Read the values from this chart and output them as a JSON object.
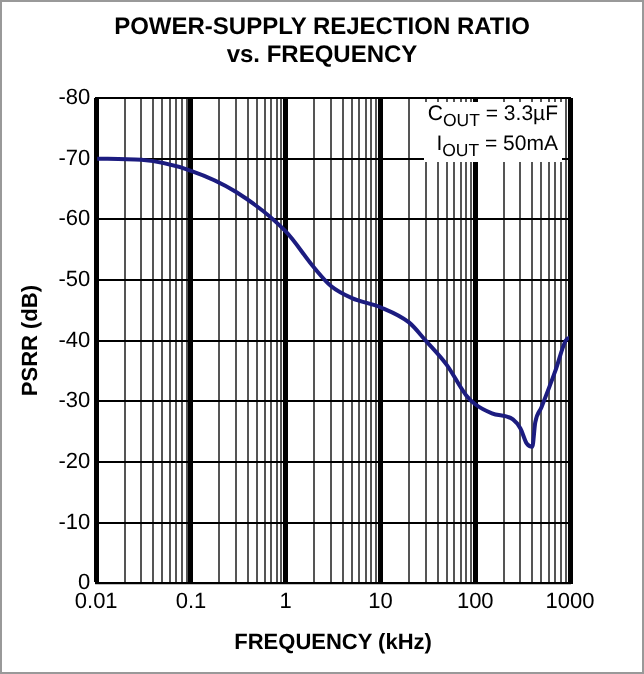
{
  "chart_data": {
    "type": "line",
    "title": "POWER-SUPPLY REJECTION RATIO\nvs. FREQUENCY",
    "xlabel": "FREQUENCY (kHz)",
    "ylabel": "PSRR (dB)",
    "annotations": [
      "C$_{OUT}$ = 3.3µF",
      "I$_{OUT}$ = 50mA"
    ],
    "x": [
      0.01,
      0.03,
      0.1,
      0.3,
      1,
      2,
      3,
      5,
      10,
      20,
      30,
      50,
      80,
      100,
      150,
      250,
      300,
      350,
      400,
      430,
      500,
      700,
      900,
      1000
    ],
    "series": [
      {
        "color": "#1c1c80",
        "values": [
          -70,
          -69.8,
          -68,
          -64.5,
          -58,
          -52,
          -49,
          -47,
          -45.5,
          -43,
          -40,
          -36,
          -31,
          -29.5,
          -28,
          -27,
          -25.5,
          -23,
          -22.5,
          -26.5,
          -29,
          -35,
          -40,
          -40.5
        ]
      }
    ],
    "log": "x",
    "xlim": [
      0.01,
      1000
    ],
    "xticks": [
      0.01,
      {
        "value": 0.02,
        "label": null
      },
      {
        "value": 0.03,
        "label": null
      },
      {
        "value": 0.04,
        "label": null
      },
      {
        "value": 0.05,
        "label": null
      },
      {
        "value": 0.06,
        "label": null
      },
      {
        "value": 0.07,
        "label": null
      },
      {
        "value": 0.08,
        "label": null
      },
      {
        "value": 0.09,
        "label": null
      },
      0.1,
      {
        "value": 0.2,
        "label": null
      },
      {
        "value": 0.3,
        "label": null
      },
      {
        "value": 0.4,
        "label": null
      },
      {
        "value": 0.5,
        "label": null
      },
      {
        "value": 0.6,
        "label": null
      },
      {
        "value": 0.7,
        "label": null
      },
      {
        "value": 0.8,
        "label": null
      },
      {
        "value": 0.9,
        "label": null
      },
      1,
      {
        "value": 2,
        "label": null
      },
      {
        "value": 3,
        "label": null
      },
      {
        "value": 4,
        "label": null
      },
      {
        "value": 5,
        "label": null
      },
      {
        "value": 6,
        "label": null
      },
      {
        "value": 7,
        "label": null
      },
      {
        "value": 8,
        "label": null
      },
      {
        "value": 9,
        "label": null
      },
      10,
      {
        "value": 20,
        "label": null
      },
      {
        "value": 30,
        "label": null
      },
      {
        "value": 40,
        "label": null
      },
      {
        "value": 50,
        "label": null
      },
      {
        "value": 60,
        "label": null
      },
      {
        "value": 70,
        "label": null
      },
      {
        "value": 80,
        "label": null
      },
      {
        "value": 90,
        "label": null
      },
      100,
      {
        "value": 200,
        "label": null
      },
      {
        "value": 300,
        "label": null
      },
      {
        "value": 400,
        "label": null
      },
      {
        "value": 500,
        "label": null
      },
      {
        "value": 600,
        "label": null
      },
      {
        "value": 700,
        "label": null
      },
      {
        "value": 800,
        "label": null
      },
      {
        "value": 900,
        "label": null
      },
      1000
    ],
    "ylim": [
      0,
      -80
    ],
    "yticks": [
      -80,
      -70,
      -60,
      -50,
      -40,
      -30,
      -20,
      -10,
      0
    ],
    "grid": true,
    "marker": "none",
    "line_style": "solid"
  }
}
